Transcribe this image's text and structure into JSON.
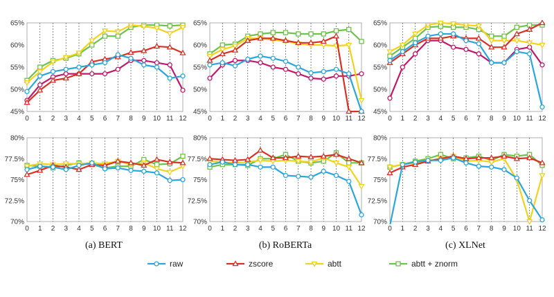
{
  "chart_data": {
    "type": "line",
    "x": [
      0,
      1,
      2,
      3,
      4,
      5,
      6,
      7,
      8,
      9,
      10,
      11,
      12
    ],
    "series_styles": [
      {
        "name": "raw",
        "color": "#2aa6de",
        "marker": "circle"
      },
      {
        "name": "zscore",
        "color": "#d93025",
        "marker": "triangle"
      },
      {
        "name": "abtt",
        "color": "#f2d21b",
        "marker": "down-triangle"
      },
      {
        "name": "abtt + znorm",
        "color": "#6cc24a",
        "marker": "square"
      }
    ],
    "extra_series": {
      "name": "",
      "color": "#c2186b",
      "marker": "circle"
    },
    "captions": [
      "(a) BERT",
      "(b) RoBERTa",
      "(c) XLNet"
    ],
    "panels": [
      {
        "ylim": [
          45,
          65
        ],
        "yticks": [
          "45%",
          "50%",
          "55%",
          "60%",
          "65%"
        ],
        "ytick_values": [
          45,
          50,
          55,
          60,
          65
        ],
        "series": [
          {
            "name": "raw",
            "values": [
              49.5,
              53,
              54,
              54.5,
              55,
              55.5,
              56,
              57.8,
              57,
              55.5,
              55,
              52.5,
              53
            ]
          },
          {
            "name": "zscore",
            "values": [
              47,
              49.8,
              52,
              52.5,
              53.5,
              56.2,
              56.8,
              57.3,
              58.3,
              58.7,
              59.7,
              59.5,
              58.2
            ]
          },
          {
            "name": "abtt",
            "values": [
              51.5,
              54,
              56.2,
              57.2,
              58.2,
              61,
              63.2,
              63,
              64.5,
              64.2,
              63.8,
              62.6,
              64
            ]
          },
          {
            "name": "abtt + znorm",
            "values": [
              52,
              55,
              56.5,
              57,
              58,
              60,
              62,
              62,
              64,
              64.5,
              64.5,
              64.3,
              64.5
            ]
          },
          {
            "name": "",
            "values": [
              47.5,
              51,
              52.8,
              53.5,
              53.5,
              53.5,
              53.5,
              54.5,
              56.5,
              56.5,
              56,
              55.5,
              49.8
            ]
          }
        ]
      },
      {
        "ylim": [
          45,
          65
        ],
        "yticks": [
          "45%",
          "50%",
          "55%",
          "60%",
          "65%"
        ],
        "ytick_values": [
          45,
          50,
          55,
          60,
          65
        ],
        "series": [
          {
            "name": "raw",
            "values": [
              55.5,
              56,
              55.3,
              56.8,
              57.5,
              57,
              56.3,
              55,
              53.7,
              54,
              54.5,
              53.5,
              45
            ]
          },
          {
            "name": "zscore",
            "values": [
              56.5,
              58,
              58.8,
              61,
              61.5,
              61.5,
              61,
              60.5,
              60.5,
              60.8,
              62,
              45,
              45
            ]
          },
          {
            "name": "abtt",
            "values": [
              57.5,
              59,
              59.8,
              61.5,
              61.5,
              61.2,
              60.8,
              60.3,
              60,
              60,
              59.8,
              60,
              47.5
            ]
          },
          {
            "name": "abtt + znorm",
            "values": [
              58,
              60,
              60.2,
              62,
              62.5,
              62.8,
              62.8,
              62.5,
              62.5,
              62.5,
              63.2,
              63.5,
              60.8
            ]
          },
          {
            "name": "",
            "values": [
              52.5,
              55.5,
              56.5,
              56.5,
              56,
              55,
              54.5,
              53.5,
              52.5,
              52.3,
              53,
              53,
              53.5
            ]
          }
        ]
      },
      {
        "ylim": [
          45,
          65
        ],
        "yticks": [
          "45%",
          "50%",
          "55%",
          "60%",
          "65%"
        ],
        "ytick_values": [
          45,
          50,
          55,
          60,
          65
        ],
        "series": [
          {
            "name": "raw",
            "values": [
              56.5,
              58.5,
              60.5,
              62,
              62.5,
              62.5,
              61,
              60.3,
              56,
              56,
              58.5,
              58,
              46
            ]
          },
          {
            "name": "zscore",
            "values": [
              56,
              58,
              60,
              61.5,
              61.5,
              62,
              61.5,
              61.5,
              59.5,
              59.5,
              62.5,
              63.5,
              65
            ]
          },
          {
            "name": "abtt",
            "values": [
              58.5,
              60,
              62.5,
              64.5,
              65,
              64.8,
              64.5,
              64.3,
              61,
              61,
              61,
              60.5,
              60
            ]
          },
          {
            "name": "abtt + znorm",
            "values": [
              57.5,
              59.5,
              61.5,
              64,
              64.2,
              64,
              64,
              63.5,
              62,
              62,
              64,
              64.5,
              64.5
            ]
          },
          {
            "name": "",
            "values": [
              48,
              55,
              58,
              61,
              61,
              59.5,
              59,
              58,
              56,
              56,
              59,
              59.5,
              55.5
            ]
          }
        ]
      },
      {
        "ylim": [
          70,
          80
        ],
        "yticks": [
          "70%",
          "72.5%",
          "75%",
          "77.5%",
          "80%"
        ],
        "ytick_values": [
          70,
          72.5,
          75,
          77.5,
          80
        ],
        "series": [
          {
            "name": "raw",
            "values": [
              76.2,
              76.6,
              76.5,
              76.2,
              76.7,
              77,
              76.3,
              76.4,
              76.1,
              76,
              75.8,
              74.9,
              75
            ]
          },
          {
            "name": "zscore",
            "values": [
              75.6,
              76.1,
              76.7,
              76.5,
              76.2,
              76.8,
              76.7,
              77.2,
              77,
              76.7,
              77.4,
              77.1,
              77
            ]
          },
          {
            "name": "abtt",
            "values": [
              76.6,
              76.9,
              76.8,
              76.9,
              76.9,
              77,
              76.9,
              77.2,
              76.8,
              77,
              76.3,
              75.9,
              76.6
            ]
          },
          {
            "name": "abtt + znorm",
            "values": [
              76.7,
              76.6,
              76.4,
              76.7,
              77,
              76.8,
              76.4,
              76.6,
              76.6,
              77.4,
              76.8,
              76.9,
              77.8
            ]
          }
        ]
      },
      {
        "ylim": [
          70,
          80
        ],
        "yticks": [
          "70%",
          "72.5%",
          "75%",
          "77.5%",
          "80%"
        ],
        "ytick_values": [
          70,
          72.5,
          75,
          77.5,
          80
        ],
        "series": [
          {
            "name": "raw",
            "values": [
              76.8,
              77.1,
              76.8,
              76.8,
              76.5,
              76.5,
              75.5,
              75.4,
              75.3,
              76,
              75.5,
              74.8,
              70.8
            ]
          },
          {
            "name": "zscore",
            "values": [
              77.5,
              77.4,
              77.3,
              77.4,
              78.5,
              77.6,
              77.6,
              77.8,
              77.7,
              77.8,
              78,
              77.5,
              77
            ]
          },
          {
            "name": "abtt",
            "values": [
              77.2,
              77.1,
              77,
              77.1,
              77.3,
              77.2,
              77.3,
              77.2,
              77.1,
              77.6,
              77,
              76.5,
              74.2
            ]
          },
          {
            "name": "abtt + znorm",
            "values": [
              76.5,
              76.8,
              76.8,
              76.7,
              77.5,
              77.5,
              78,
              77.2,
              77,
              77.2,
              78.2,
              77,
              77
            ]
          }
        ]
      },
      {
        "ylim": [
          70,
          80
        ],
        "yticks": [
          "70%",
          "72.5%",
          "75%",
          "77.5%",
          "80%"
        ],
        "ytick_values": [
          70,
          72.5,
          75,
          77.5,
          80
        ],
        "series": [
          {
            "name": "raw",
            "values": [
              69.5,
              76.8,
              77.1,
              77.3,
              77.3,
              77.6,
              77,
              76.6,
              76.5,
              76.2,
              75.2,
              72.5,
              70.2
            ]
          },
          {
            "name": "zscore",
            "values": [
              75.8,
              76.5,
              76.8,
              77.2,
              77.5,
              77.8,
              77.5,
              77.6,
              77.6,
              77.8,
              77.5,
              77.6,
              77
            ]
          },
          {
            "name": "abtt",
            "values": [
              76.5,
              76.8,
              77,
              77.3,
              77.5,
              77.8,
              77.2,
              77.3,
              77.1,
              77.5,
              75,
              70,
              75.5
            ]
          },
          {
            "name": "abtt + znorm",
            "values": [
              76.5,
              76.8,
              77.2,
              77.5,
              78,
              77.5,
              77.6,
              77.8,
              77.3,
              78,
              77.8,
              78,
              76.7
            ]
          }
        ]
      }
    ]
  }
}
